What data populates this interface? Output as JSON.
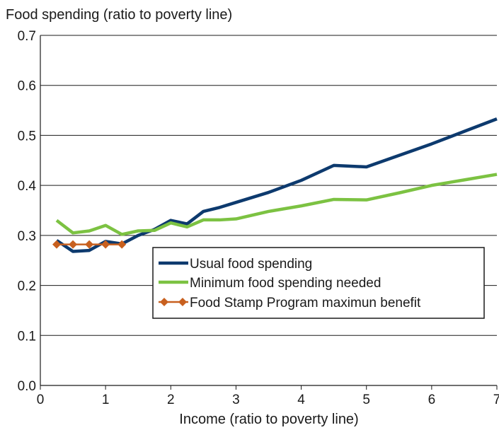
{
  "chart_data": {
    "type": "line",
    "ylabel": "Food spending (ratio to poverty line)",
    "xlabel": "Income (ratio to poverty line)",
    "xlim": [
      0,
      7
    ],
    "ylim": [
      0,
      0.7
    ],
    "x_ticks": [
      "0",
      "1",
      "2",
      "3",
      "4",
      "5",
      "6",
      "7"
    ],
    "y_ticks": [
      "0.0",
      "0.1",
      "0.2",
      "0.3",
      "0.4",
      "0.5",
      "0.6",
      "0.7"
    ],
    "grid": "horizontal",
    "legend_position": "inside-center-right",
    "series": [
      {
        "name": "Usual food spending",
        "color": "#0d3a6e",
        "marker": "none",
        "x": [
          0.25,
          0.5,
          0.75,
          1.0,
          1.25,
          1.5,
          1.75,
          2.0,
          2.25,
          2.5,
          2.75,
          3.0,
          3.5,
          4.0,
          4.5,
          5.0,
          5.5,
          6.0,
          6.5,
          7.0
        ],
        "y": [
          0.29,
          0.268,
          0.27,
          0.288,
          0.283,
          0.3,
          0.312,
          0.33,
          0.323,
          0.348,
          0.356,
          0.366,
          0.386,
          0.41,
          0.44,
          0.437,
          0.46,
          0.483,
          0.508,
          0.533
        ]
      },
      {
        "name": "Minimum food spending needed",
        "color": "#7cc242",
        "marker": "none",
        "x": [
          0.25,
          0.5,
          0.75,
          1.0,
          1.25,
          1.5,
          1.75,
          2.0,
          2.25,
          2.5,
          2.75,
          3.0,
          3.5,
          4.0,
          4.5,
          5.0,
          5.5,
          6.0,
          6.5,
          7.0
        ],
        "y": [
          0.33,
          0.305,
          0.309,
          0.32,
          0.302,
          0.309,
          0.31,
          0.325,
          0.317,
          0.331,
          0.331,
          0.333,
          0.348,
          0.359,
          0.372,
          0.371,
          0.385,
          0.4,
          0.411,
          0.422
        ]
      },
      {
        "name": "Food Stamp Program maximun benefit",
        "color": "#c8601f",
        "marker": "diamond",
        "x": [
          0.25,
          0.5,
          0.75,
          1.0,
          1.25
        ],
        "y": [
          0.282,
          0.282,
          0.282,
          0.282,
          0.282
        ]
      }
    ]
  }
}
